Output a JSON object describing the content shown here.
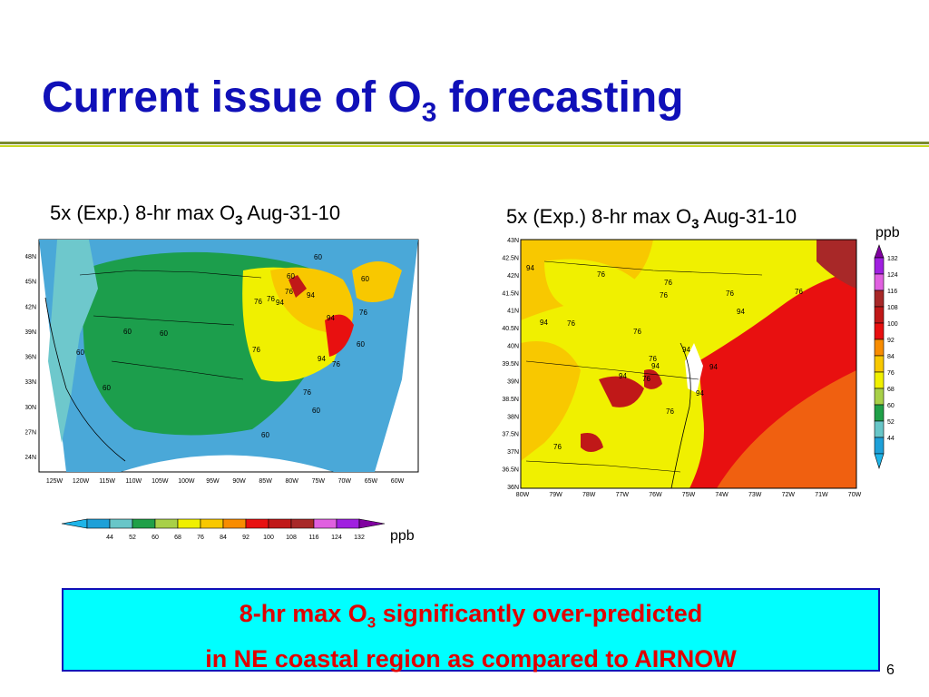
{
  "slide": {
    "title_main": "Current issue of O",
    "title_sub": "3",
    "title_tail": " forecasting",
    "page_number": "6"
  },
  "left_panel": {
    "caption_main": "5x (Exp.) 8-hr max O",
    "caption_sub": "3",
    "caption_tail": " Aug-31-10",
    "lat_ticks": [
      "48N",
      "45N",
      "42N",
      "39N",
      "36N",
      "33N",
      "30N",
      "27N",
      "24N"
    ],
    "lon_ticks": [
      "125W",
      "120W",
      "115W",
      "110W",
      "105W",
      "100W",
      "95W",
      "90W",
      "85W",
      "80W",
      "75W",
      "70W",
      "65W",
      "60W"
    ],
    "contour_labels": [
      "60",
      "60",
      "60",
      "60",
      "60",
      "60",
      "76",
      "76",
      "76",
      "94",
      "94",
      "94",
      "76",
      "60",
      "94",
      "76",
      "76",
      "60",
      "60",
      "60",
      "76"
    ]
  },
  "right_panel": {
    "caption_main": "5x (Exp.) 8-hr max O",
    "caption_sub": "3",
    "caption_tail": " Aug-31-10",
    "lat_ticks": [
      "43N",
      "42.5N",
      "42N",
      "41.5N",
      "41N",
      "40.5N",
      "40N",
      "39.5N",
      "39N",
      "38.5N",
      "38N",
      "37.5N",
      "37N",
      "36.5N",
      "36N"
    ],
    "lon_ticks": [
      "80W",
      "79W",
      "78W",
      "77W",
      "76W",
      "75W",
      "74W",
      "73W",
      "72W",
      "71W",
      "70W"
    ],
    "contour_labels": [
      "76",
      "76",
      "76",
      "76",
      "94",
      "76",
      "94",
      "76",
      "76",
      "94",
      "76",
      "94",
      "94",
      "94",
      "76",
      "94",
      "76",
      "76",
      "94"
    ]
  },
  "colorbar": {
    "unit_label": "ppb",
    "levels": [
      "44",
      "52",
      "60",
      "68",
      "76",
      "84",
      "92",
      "100",
      "108",
      "116",
      "124",
      "132"
    ],
    "colors": [
      "#1ea0d8",
      "#68c6c8",
      "#20a048",
      "#a8d048",
      "#f0f000",
      "#f8c800",
      "#f88c00",
      "#e81010",
      "#c01818",
      "#a82828",
      "#e060e0",
      "#a020e0"
    ],
    "low_cap": "#1eb4e8",
    "high_cap": "#8000a0"
  },
  "callout": {
    "line1_main": "8-hr max O",
    "line1_sub": "3",
    "line1_tail": " significantly over-predicted",
    "line2": "in NE coastal region  as compared to AIRNOW"
  }
}
